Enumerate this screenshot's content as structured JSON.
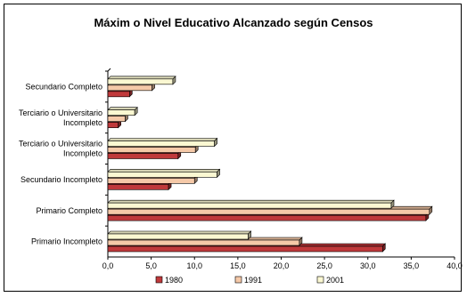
{
  "chart_data": {
    "type": "bar",
    "orientation": "horizontal",
    "title": "Máxim o Nivel Educativo Alcanzado según Censos",
    "categories": [
      "Primario Incompleto",
      "Primario Completo",
      "Secundario Incompleto",
      "Terciario o Universitario Incompleto",
      "Terciario o Universitario Incompleto",
      "Secundario Completo"
    ],
    "category_lines": [
      [
        "Primario Incompleto"
      ],
      [
        "Primario Completo"
      ],
      [
        "Secundario Incompleto"
      ],
      [
        "Terciario o Universitario",
        "Incompleto"
      ],
      [
        "Terciario o Universitario",
        "Incompleto"
      ],
      [
        "Secundario Completo"
      ]
    ],
    "series": [
      {
        "name": "1980",
        "color": "#c0393b",
        "values": [
          31.7,
          36.7,
          7.0,
          8.1,
          1.2,
          2.5
        ]
      },
      {
        "name": "1991",
        "color": "#f5c9a8",
        "values": [
          22.1,
          37.1,
          10.0,
          10.1,
          2.0,
          5.1
        ]
      },
      {
        "name": "2001",
        "color": "#fbf8d2",
        "values": [
          16.2,
          32.7,
          12.6,
          12.3,
          3.1,
          7.5
        ]
      }
    ],
    "xlim": [
      0,
      40
    ],
    "xticks": [
      "0,0",
      "5,0",
      "10,0",
      "15,0",
      "20,0",
      "25,0",
      "30,0",
      "35,0",
      "40,0"
    ],
    "legend_position": "bottom",
    "grid": false
  }
}
